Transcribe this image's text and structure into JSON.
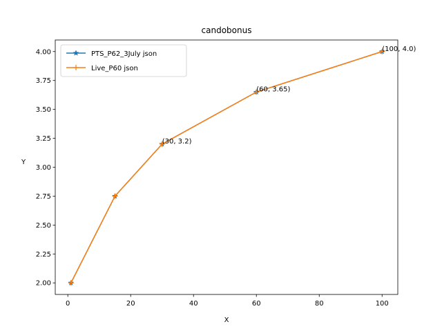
{
  "chart_data": {
    "type": "line",
    "title": "candobonus",
    "xlabel": "X",
    "ylabel": "Y",
    "xlim": [
      -4,
      105
    ],
    "ylim": [
      1.9,
      4.1
    ],
    "xticks": [
      0,
      20,
      40,
      60,
      80,
      100
    ],
    "yticks": [
      2.0,
      2.25,
      2.5,
      2.75,
      3.0,
      3.25,
      3.5,
      3.75,
      4.0
    ],
    "grid": false,
    "legend_position": "top-left",
    "series": [
      {
        "name": "PTS_P62_3July json",
        "color": "#1f77b4",
        "marker": "star",
        "x": [
          1,
          15,
          30,
          60,
          100
        ],
        "y": [
          2.0,
          2.75,
          3.2,
          3.65,
          4.0
        ]
      },
      {
        "name": "Live_P60 json",
        "color": "#ff7f0e",
        "marker": "plus",
        "x": [
          1,
          15,
          30,
          60,
          100
        ],
        "y": [
          2.0,
          2.75,
          3.2,
          3.65,
          4.0
        ]
      }
    ],
    "annotations": [
      {
        "text": "(30, 3.2)",
        "x": 30,
        "y": 3.2
      },
      {
        "text": "(60, 3.65)",
        "x": 60,
        "y": 3.65
      },
      {
        "text": "(100, 4.0)",
        "x": 100,
        "y": 4.0
      }
    ]
  }
}
